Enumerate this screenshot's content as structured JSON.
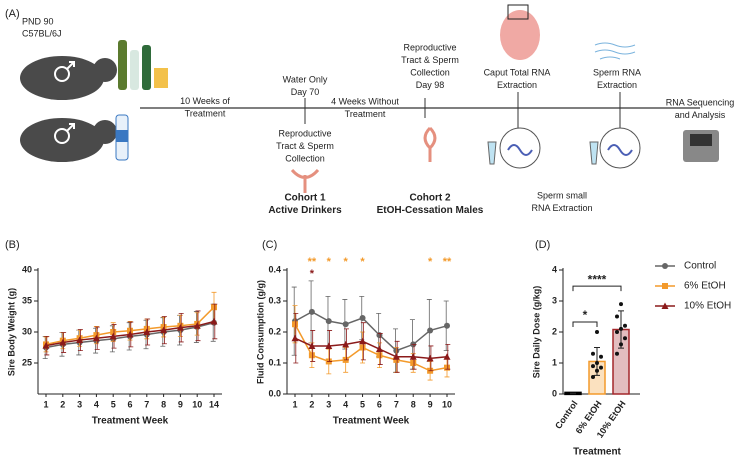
{
  "diagram": {
    "label": "(A)",
    "strain": [
      "PND 90",
      "C57BL/6J"
    ],
    "events": [
      {
        "lines": [
          "10 Weeks of",
          "Treatment"
        ]
      },
      {
        "lines": [
          "Water Only",
          "Day 70"
        ]
      },
      {
        "lines": [
          "4 Weeks Without",
          "Treatment"
        ]
      },
      {
        "lines": [
          "Reproductive",
          "Tract & Sperm",
          "Collection",
          "Day 98"
        ]
      },
      {
        "lines": [
          "Caput Total RNA",
          "Extraction"
        ]
      },
      {
        "lines": [
          "Sperm RNA",
          "Extraction"
        ]
      },
      {
        "lines": [
          "RNA Sequencing",
          "and Analysis"
        ]
      },
      {
        "lines": [
          "Reproductive",
          "Tract & Sperm",
          "Collection"
        ]
      },
      {
        "lines": [
          "Cohort 1",
          "Active Drinkers"
        ]
      },
      {
        "lines": [
          "Cohort 2",
          "EtOH-Cessation Males"
        ]
      },
      {
        "lines": [
          "Sperm small",
          "RNA Extraction"
        ]
      }
    ]
  },
  "chart_data": [
    {
      "type": "line",
      "label": "(B)",
      "y_label": "Sire Body Weight (g)",
      "x_label": "Treatment Week",
      "categories": [
        "1",
        "2",
        "3",
        "4",
        "5",
        "6",
        "7",
        "8",
        "9",
        "10",
        "14"
      ],
      "ylim": [
        20,
        40
      ],
      "yticks": [
        25,
        30,
        35,
        40
      ],
      "series": [
        {
          "name": "Control",
          "color": "#666666",
          "marker": "circle",
          "values": [
            27.5,
            28,
            28.3,
            28.6,
            28.9,
            29.3,
            29.6,
            30,
            30.3,
            30.8,
            31.5
          ],
          "errors": [
            1.8,
            1.9,
            2,
            2,
            2.1,
            2.2,
            2.3,
            2.3,
            2.4,
            2.5,
            3
          ]
        },
        {
          "name": "6% EtOH",
          "color": "#f39a2b",
          "marker": "square",
          "values": [
            28,
            28.6,
            29,
            29.5,
            30,
            30.2,
            30.5,
            30.8,
            31,
            31.3,
            34
          ],
          "errors": [
            1.2,
            1.3,
            1.3,
            1.4,
            1.5,
            1.5,
            1.6,
            1.6,
            1.7,
            1.8,
            2.4
          ]
        },
        {
          "name": "10% EtOH",
          "color": "#8b1a1a",
          "marker": "triangle",
          "values": [
            27.8,
            28.3,
            28.7,
            29,
            29.3,
            29.6,
            30,
            30.3,
            30.7,
            31,
            31.7
          ],
          "errors": [
            1.5,
            1.6,
            1.7,
            1.8,
            1.9,
            2,
            2.1,
            2.2,
            2.3,
            2.4,
            2.8
          ]
        }
      ]
    },
    {
      "type": "line",
      "label": "(C)",
      "y_label": "Fluid Consumption (g/g)",
      "x_label": "Treatment Week",
      "categories": [
        "1",
        "2",
        "3",
        "4",
        "5",
        "6",
        "7",
        "8",
        "9",
        "10"
      ],
      "ylim": [
        0,
        0.4
      ],
      "yticks": [
        {
          "value": 0,
          "label": "0.0"
        },
        {
          "value": 0.1,
          "label": "0.1"
        },
        {
          "value": 0.2,
          "label": "0.2"
        },
        {
          "value": 0.3,
          "label": "0.3"
        },
        {
          "value": 0.4,
          "label": "0.4"
        }
      ],
      "series": [
        {
          "name": "Control",
          "color": "#666666",
          "marker": "circle",
          "values": [
            0.235,
            0.265,
            0.235,
            0.225,
            0.245,
            0.19,
            0.14,
            0.16,
            0.205,
            0.22
          ],
          "errors": [
            0.11,
            0.1,
            0.08,
            0.08,
            0.07,
            0.07,
            0.07,
            0.08,
            0.1,
            0.08
          ]
        },
        {
          "name": "6% EtOH",
          "color": "#f39a2b",
          "marker": "square",
          "values": [
            0.225,
            0.125,
            0.105,
            0.11,
            0.15,
            0.125,
            0.11,
            0.1,
            0.075,
            0.085
          ],
          "errors": [
            0.06,
            0.04,
            0.04,
            0.04,
            0.05,
            0.04,
            0.04,
            0.03,
            0.03,
            0.03
          ],
          "stars": [
            null,
            "**",
            "*",
            "*",
            "*",
            null,
            null,
            null,
            "*",
            "**"
          ]
        },
        {
          "name": "10% EtOH",
          "color": "#8b1a1a",
          "marker": "triangle",
          "values": [
            0.18,
            0.155,
            0.155,
            0.16,
            0.17,
            0.145,
            0.12,
            0.12,
            0.115,
            0.12
          ],
          "errors": [
            0.08,
            0.05,
            0.05,
            0.05,
            0.06,
            0.05,
            0.05,
            0.04,
            0.04,
            0.04
          ],
          "stars": [
            null,
            "*",
            null,
            null,
            null,
            null,
            null,
            null,
            null,
            null
          ]
        }
      ]
    },
    {
      "type": "bar",
      "label": "(D)",
      "y_label": "Sire Daily Dose (g/kg)",
      "x_label": "Treatment",
      "categories": [
        "Control",
        "6% EtOH",
        "10% EtOH"
      ],
      "values": [
        0.02,
        1.05,
        2.08
      ],
      "errors": [
        0.01,
        0.45,
        0.6
      ],
      "colors": [
        "#000000",
        "#f39a2b",
        "#a3262a"
      ],
      "points": [
        [],
        [
          0.55,
          0.75,
          0.85,
          0.9,
          1.0,
          1.2,
          1.3,
          2.0
        ],
        [
          1.3,
          1.6,
          1.8,
          2.0,
          2.1,
          2.2,
          2.5,
          2.9
        ]
      ],
      "annotations": [
        "*",
        "****"
      ],
      "ylim": [
        0,
        4
      ],
      "yticks": [
        0,
        1,
        2,
        3,
        4
      ]
    }
  ]
}
